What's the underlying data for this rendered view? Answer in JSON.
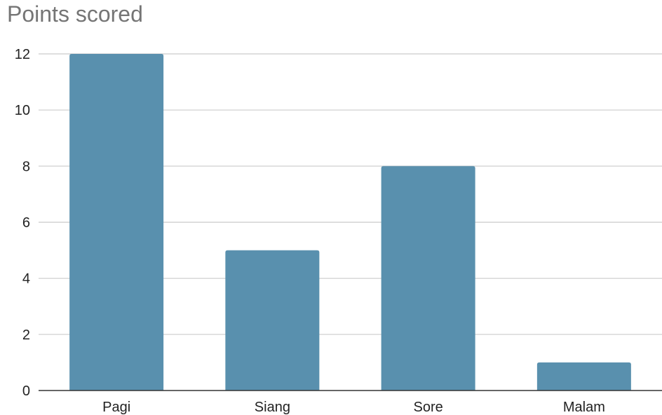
{
  "chart_data": {
    "type": "bar",
    "title": "Points scored",
    "categories": [
      "Pagi",
      "Siang",
      "Sore",
      "Malam"
    ],
    "values": [
      12,
      5,
      8,
      1
    ],
    "xlabel": "",
    "ylabel": "",
    "ylim": [
      0,
      12
    ],
    "yticks": [
      0,
      2,
      4,
      6,
      8,
      10,
      12
    ],
    "grid": true,
    "legend": "none",
    "bar_color": "#5990ae",
    "gridline_color": "#cccccc",
    "axis_color": "#333333"
  }
}
